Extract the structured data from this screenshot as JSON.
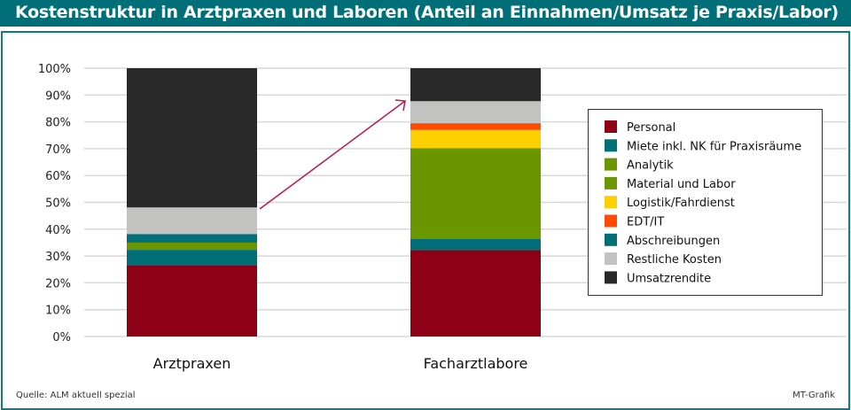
{
  "chart_data": {
    "type": "bar",
    "stacked": true,
    "title": "Kostenstruktur in Arztpraxen und Laboren (Anteil an Einnahmen/Umsatz je Praxis/Labor)",
    "categories": [
      "Arztpraxen",
      "Facharztlabore"
    ],
    "ylim": [
      0,
      100
    ],
    "yticks": [
      "0%",
      "10%",
      "20%",
      "30%",
      "40%",
      "50%",
      "60%",
      "70%",
      "80%",
      "90%",
      "100%"
    ],
    "grid": true,
    "legend_position": "right",
    "series": [
      {
        "name": "Personal",
        "color": "#8e0016",
        "values": [
          26.6,
          32.2
        ]
      },
      {
        "name": "Miete inkl. NK für Praxisräume",
        "color": "#006f78",
        "values": [
          5.7,
          4.1
        ]
      },
      {
        "name": "Analytik",
        "color": "#6a9600",
        "values": [
          0,
          33.9
        ]
      },
      {
        "name": "Material und Labor",
        "color": "#6a9600",
        "values": [
          2.7,
          0
        ]
      },
      {
        "name": "Logistik/Fahrdienst",
        "color": "#ffd000",
        "values": [
          0,
          6.8
        ]
      },
      {
        "name": "EDT/IT",
        "color": "#ff4a00",
        "values": [
          0,
          2.5
        ]
      },
      {
        "name": "Abschreibungen",
        "color": "#006f78",
        "values": [
          3.2,
          0
        ]
      },
      {
        "name": "Restliche Kosten",
        "color": "#c2c2c0",
        "values": [
          9.9,
          8.2
        ]
      },
      {
        "name": "Umsatzrendite",
        "color": "#292929",
        "values": [
          51.9,
          12.3
        ]
      }
    ],
    "annotation": "arrow from Arztpraxen to Facharztlabore"
  },
  "footer": {
    "source": "Quelle: ALM aktuell spezial",
    "credit": "MT-Grafik"
  },
  "colors": {
    "header": "#006f78",
    "arrow": "#c0144c"
  }
}
